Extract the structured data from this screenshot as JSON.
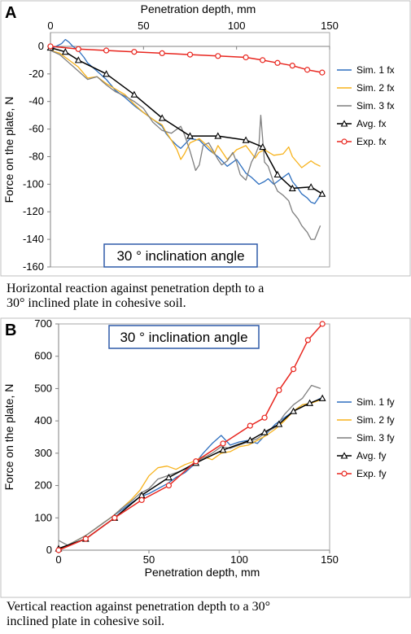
{
  "colors": {
    "sim1": "#2e6fbf",
    "sim2": "#f7b21b",
    "sim3": "#7f7f7f",
    "avg": "#000000",
    "exp": "#e8261f",
    "plot_border": "#a6a6a6",
    "caption_bg": "#eeeeee",
    "callout_border": "#2e5aa8"
  },
  "panel_a": {
    "letter": "A",
    "caption": "Horizontal reaction against penetration depth to a 30° inclined plate in cohesive soil.",
    "chart_data": {
      "type": "line",
      "title": "",
      "xlabel": "Penetration depth, mm",
      "ylabel": "Force on the plate, N",
      "x_axis_position": "top",
      "xlim": [
        0,
        150
      ],
      "ylim": [
        -160,
        10
      ],
      "x_ticks": [
        0,
        50,
        100,
        150
      ],
      "y_ticks": [
        0,
        -20,
        -40,
        -60,
        -80,
        -100,
        -120,
        -140,
        -160
      ],
      "grid": false,
      "legend_position": "right",
      "annotation": "30 °  inclination angle",
      "series": [
        {
          "name": "Sim. 1 fx",
          "color_key": "sim1",
          "marker": "none",
          "x": [
            0,
            3,
            6,
            8,
            10,
            12,
            15,
            18,
            20,
            25,
            30,
            35,
            40,
            45,
            50,
            55,
            60,
            62,
            65,
            68,
            70,
            75,
            80,
            85,
            90,
            95,
            100,
            105,
            108,
            112,
            115,
            117,
            120,
            125,
            128,
            130,
            133,
            135,
            138,
            140,
            142,
            145
          ],
          "y": [
            -2,
            0,
            2,
            5,
            3,
            0,
            -3,
            -8,
            -12,
            -18,
            -24,
            -32,
            -37,
            -43,
            -48,
            -53,
            -58,
            -63,
            -68,
            -72,
            -74,
            -67,
            -68,
            -75,
            -80,
            -87,
            -82,
            -92,
            -95,
            -100,
            -98,
            -96,
            -100,
            -95,
            -92,
            -98,
            -103,
            -107,
            -110,
            -113,
            -114,
            -108
          ]
        },
        {
          "name": "Sim. 2 fx",
          "color_key": "sim2",
          "marker": "none",
          "x": [
            0,
            5,
            10,
            15,
            20,
            25,
            30,
            35,
            40,
            45,
            50,
            55,
            60,
            62,
            65,
            68,
            70,
            72,
            75,
            80,
            85,
            88,
            90,
            95,
            100,
            105,
            110,
            112,
            115,
            120,
            125,
            128,
            130,
            135,
            140,
            142,
            145
          ],
          "y": [
            -3,
            -5,
            -10,
            -15,
            -23,
            -22,
            -27,
            -31,
            -35,
            -42,
            -48,
            -53,
            -57,
            -62,
            -68,
            -75,
            -82,
            -78,
            -70,
            -67,
            -73,
            -78,
            -72,
            -82,
            -75,
            -72,
            -81,
            -77,
            -75,
            -79,
            -78,
            -73,
            -80,
            -88,
            -83,
            -85,
            -87
          ]
        },
        {
          "name": "Sim. 3 fx",
          "color_key": "sim3",
          "marker": "none",
          "x": [
            0,
            5,
            10,
            15,
            20,
            25,
            30,
            35,
            40,
            45,
            50,
            55,
            60,
            65,
            70,
            72,
            75,
            78,
            80,
            82,
            85,
            88,
            90,
            92,
            95,
            98,
            100,
            102,
            105,
            108,
            110,
            112,
            113,
            114,
            115,
            117,
            120,
            122,
            125,
            128,
            130,
            133,
            135,
            138,
            140,
            142,
            145
          ],
          "y": [
            -3,
            -6,
            -12,
            -18,
            -24,
            -22,
            -28,
            -33,
            -36,
            -40,
            -45,
            -55,
            -61,
            -63,
            -58,
            -64,
            -76,
            -90,
            -86,
            -72,
            -70,
            -77,
            -82,
            -86,
            -83,
            -77,
            -84,
            -93,
            -97,
            -84,
            -79,
            -72,
            -50,
            -67,
            -84,
            -87,
            -99,
            -105,
            -108,
            -112,
            -120,
            -125,
            -130,
            -135,
            -140,
            -140,
            -130
          ]
        },
        {
          "name": "Avg. fx",
          "color_key": "avg",
          "marker": "triangle",
          "x": [
            0,
            8,
            15,
            30,
            45,
            60,
            75,
            90,
            105,
            114,
            122,
            130,
            140,
            146
          ],
          "y": [
            -1,
            -4,
            -10,
            -20,
            -35,
            -52,
            -65,
            -65,
            -68,
            -73,
            -93,
            -103,
            -102,
            -107
          ]
        },
        {
          "name": "Exp. fx",
          "color_key": "exp",
          "marker": "circle",
          "x": [
            0,
            15,
            30,
            45,
            60,
            75,
            90,
            105,
            114,
            122,
            130,
            138,
            146
          ],
          "y": [
            0,
            -2,
            -3,
            -4,
            -5,
            -6,
            -7,
            -8,
            -10,
            -12,
            -14,
            -17,
            -19
          ]
        }
      ]
    }
  },
  "panel_b": {
    "letter": "B",
    "caption": "Vertical reaction against penetration depth to a 30° inclined plate in cohesive soil.",
    "chart_data": {
      "type": "line",
      "title": "",
      "xlabel": "Penetration depth, mm",
      "ylabel": "Force on the plate, N",
      "x_axis_position": "bottom",
      "xlim": [
        0,
        150
      ],
      "ylim": [
        0,
        700
      ],
      "x_ticks": [
        0,
        50,
        100,
        150
      ],
      "y_ticks": [
        0,
        100,
        200,
        300,
        400,
        500,
        600,
        700
      ],
      "grid": false,
      "legend_position": "right",
      "annotation": "30 °  inclination angle",
      "series": [
        {
          "name": "Sim. 1 fy",
          "color_key": "sim1",
          "marker": "none",
          "x": [
            0,
            5,
            10,
            15,
            20,
            25,
            30,
            35,
            40,
            45,
            50,
            55,
            60,
            65,
            70,
            75,
            80,
            85,
            90,
            95,
            100,
            105,
            110,
            115,
            120,
            125,
            130,
            135,
            140,
            145
          ],
          "y": [
            0,
            15,
            30,
            45,
            65,
            85,
            105,
            125,
            145,
            165,
            175,
            190,
            205,
            225,
            240,
            265,
            300,
            330,
            355,
            325,
            335,
            340,
            330,
            360,
            390,
            410,
            430,
            450,
            455,
            470
          ]
        },
        {
          "name": "Sim. 2 fy",
          "color_key": "sim2",
          "marker": "none",
          "x": [
            0,
            5,
            10,
            15,
            20,
            25,
            30,
            35,
            40,
            45,
            50,
            55,
            60,
            65,
            70,
            75,
            80,
            85,
            90,
            95,
            100,
            105,
            110,
            115,
            120,
            125,
            130,
            135,
            140,
            145
          ],
          "y": [
            0,
            15,
            30,
            45,
            65,
            85,
            105,
            130,
            155,
            185,
            230,
            255,
            260,
            250,
            265,
            275,
            290,
            280,
            300,
            305,
            320,
            325,
            340,
            355,
            375,
            400,
            430,
            450,
            455,
            465
          ]
        },
        {
          "name": "Sim. 3 fy",
          "color_key": "sim3",
          "marker": "none",
          "x": [
            0,
            5,
            10,
            15,
            20,
            25,
            30,
            35,
            40,
            45,
            50,
            55,
            60,
            65,
            70,
            75,
            80,
            85,
            90,
            95,
            100,
            105,
            110,
            115,
            120,
            125,
            130,
            135,
            140,
            145
          ],
          "y": [
            30,
            15,
            30,
            45,
            65,
            85,
            105,
            130,
            150,
            175,
            190,
            220,
            230,
            240,
            250,
            270,
            285,
            300,
            320,
            315,
            325,
            335,
            345,
            365,
            380,
            420,
            450,
            470,
            510,
            500
          ]
        },
        {
          "name": "Avg. fy",
          "color_key": "avg",
          "marker": "triangle",
          "x": [
            0,
            15,
            31,
            46,
            61,
            76,
            91,
            106,
            114,
            122,
            130,
            139,
            146
          ],
          "y": [
            5,
            35,
            100,
            170,
            225,
            270,
            310,
            340,
            365,
            390,
            430,
            455,
            470
          ]
        },
        {
          "name": "Exp. fy",
          "color_key": "exp",
          "marker": "circle",
          "x": [
            0,
            15,
            31,
            46,
            61,
            76,
            91,
            106,
            114,
            122,
            130,
            138,
            146
          ],
          "y": [
            0,
            35,
            100,
            155,
            200,
            275,
            330,
            385,
            410,
            495,
            560,
            650,
            700
          ]
        }
      ]
    }
  }
}
